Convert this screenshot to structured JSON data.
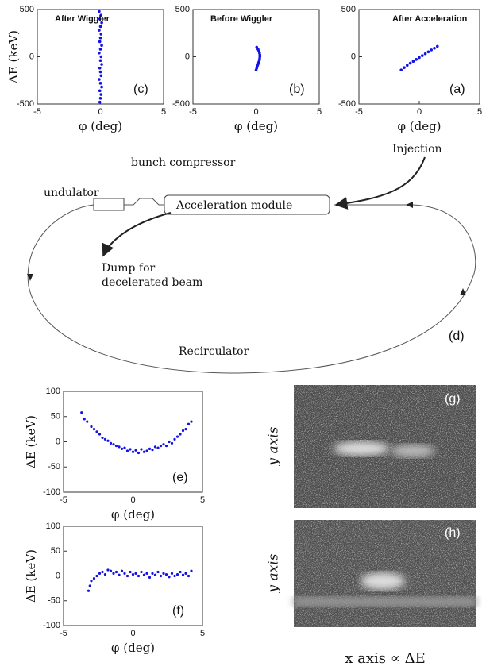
{
  "chart_data": [
    {
      "type": "scatter",
      "title": "After Wiggler",
      "panel_label": "(c)",
      "xlabel": "φ (deg)",
      "ylabel": "ΔE (keV)",
      "color": "#1212e6",
      "xlim": [
        -5,
        5
      ],
      "ylim": [
        -500,
        500
      ],
      "xticks": [
        -5,
        0,
        5
      ],
      "yticks": [
        -500,
        0,
        500
      ],
      "x": [
        -0.1,
        0.05,
        -0.05,
        0.1,
        0,
        -0.1,
        0.05,
        0,
        -0.05,
        0.1,
        0,
        -0.1,
        0.05,
        0,
        0.1,
        -0.05,
        0,
        0.05,
        -0.1,
        0,
        0.1,
        -0.05,
        0.05,
        0,
        -0.05
      ],
      "values": [
        480,
        440,
        400,
        360,
        320,
        280,
        240,
        200,
        160,
        120,
        80,
        40,
        0,
        -40,
        -80,
        -120,
        -160,
        -200,
        -240,
        -280,
        -320,
        -360,
        -400,
        -440,
        -480
      ]
    },
    {
      "type": "scatter",
      "title": "Before Wiggler",
      "panel_label": "(b)",
      "xlabel": "φ (deg)",
      "color": "#1212e6",
      "xlim": [
        -5,
        5
      ],
      "ylim": [
        -500,
        500
      ],
      "xticks": [
        -5,
        0,
        5
      ],
      "yticks": [
        -500,
        0,
        500
      ],
      "x": [
        0.05,
        0.15,
        0.22,
        0.27,
        0.3,
        0.3,
        0.28,
        0.25,
        0.2,
        0.15,
        0.1,
        0.05,
        0
      ],
      "values": [
        100,
        80,
        60,
        40,
        20,
        0,
        -20,
        -40,
        -60,
        -80,
        -100,
        -120,
        -140
      ]
    },
    {
      "type": "scatter",
      "title": "After Acceleration",
      "panel_label": "(a)",
      "xlabel": "φ (deg)",
      "color": "#1212e6",
      "xlim": [
        -5,
        5
      ],
      "ylim": [
        -500,
        500
      ],
      "xticks": [
        -5,
        0,
        5
      ],
      "yticks": [
        -500,
        0,
        500
      ],
      "x": [
        -1.5,
        -1.25,
        -1,
        -0.75,
        -0.5,
        -0.25,
        0,
        0.25,
        0.5,
        0.75,
        1,
        1.25,
        1.5
      ],
      "values": [
        -140,
        -115,
        -90,
        -68,
        -48,
        -28,
        -8,
        12,
        32,
        52,
        72,
        90,
        110
      ]
    },
    {
      "type": "scatter",
      "panel_label": "(e)",
      "xlabel": "φ (deg)",
      "ylabel": "ΔE (keV)",
      "color": "#1212e6",
      "xlim": [
        -5,
        5
      ],
      "ylim": [
        -100,
        100
      ],
      "xticks": [
        -5,
        0,
        5
      ],
      "yticks": [
        -100,
        -50,
        0,
        50,
        100
      ],
      "x": [
        -3.7,
        -3.5,
        -3.3,
        -3.0,
        -2.8,
        -2.6,
        -2.4,
        -2.2,
        -2.0,
        -1.8,
        -1.6,
        -1.4,
        -1.2,
        -1.0,
        -0.8,
        -0.6,
        -0.4,
        -0.2,
        0,
        0.2,
        0.4,
        0.6,
        0.8,
        1.0,
        1.2,
        1.4,
        1.6,
        1.8,
        2.0,
        2.2,
        2.4,
        2.6,
        2.8,
        3.0,
        3.2,
        3.4,
        3.6,
        3.8,
        4.0,
        4.2
      ],
      "values": [
        58,
        45,
        40,
        30,
        25,
        20,
        15,
        8,
        5,
        2,
        -3,
        -5,
        -8,
        -10,
        -14,
        -12,
        -18,
        -15,
        -20,
        -17,
        -22,
        -15,
        -20,
        -18,
        -14,
        -16,
        -10,
        -12,
        -8,
        -5,
        -8,
        0,
        -3,
        5,
        10,
        15,
        22,
        25,
        35,
        40
      ]
    },
    {
      "type": "scatter",
      "panel_label": "(f)",
      "xlabel": "φ (deg)",
      "ylabel": "ΔE (keV)",
      "color": "#1212e6",
      "xlim": [
        -5,
        5
      ],
      "ylim": [
        -100,
        100
      ],
      "xticks": [
        -5,
        0,
        5
      ],
      "yticks": [
        -100,
        -50,
        0,
        50,
        100
      ],
      "x": [
        -3.2,
        -3.1,
        -3.0,
        -2.8,
        -2.6,
        -2.4,
        -2.2,
        -2.0,
        -1.8,
        -1.6,
        -1.4,
        -1.2,
        -1.0,
        -0.8,
        -0.6,
        -0.4,
        -0.2,
        0,
        0.2,
        0.4,
        0.6,
        0.8,
        1.0,
        1.2,
        1.4,
        1.6,
        1.8,
        2.0,
        2.2,
        2.4,
        2.6,
        2.8,
        3.0,
        3.2,
        3.4,
        3.6,
        3.8,
        4.0,
        4.2
      ],
      "values": [
        -30,
        -20,
        -10,
        -5,
        0,
        5,
        8,
        3,
        12,
        10,
        5,
        8,
        2,
        10,
        5,
        0,
        8,
        3,
        5,
        0,
        8,
        2,
        5,
        -3,
        5,
        2,
        8,
        0,
        5,
        3,
        -2,
        5,
        0,
        3,
        8,
        2,
        5,
        0,
        10
      ]
    }
  ],
  "diagram": {
    "bunch_compressor": "bunch compressor",
    "undulator": "undulator",
    "module": "Acceleration module",
    "injection": "Injection",
    "dump": [
      "Dump for",
      "decelerated beam"
    ],
    "recirculator": "Recirculator",
    "panel_label": "(d)"
  },
  "images": {
    "panels": [
      {
        "panel_label": "(g)",
        "y_label": "y axis"
      },
      {
        "panel_label": "(h)",
        "y_label": "y axis"
      }
    ],
    "x_label": "x axis ∝ ΔE"
  }
}
